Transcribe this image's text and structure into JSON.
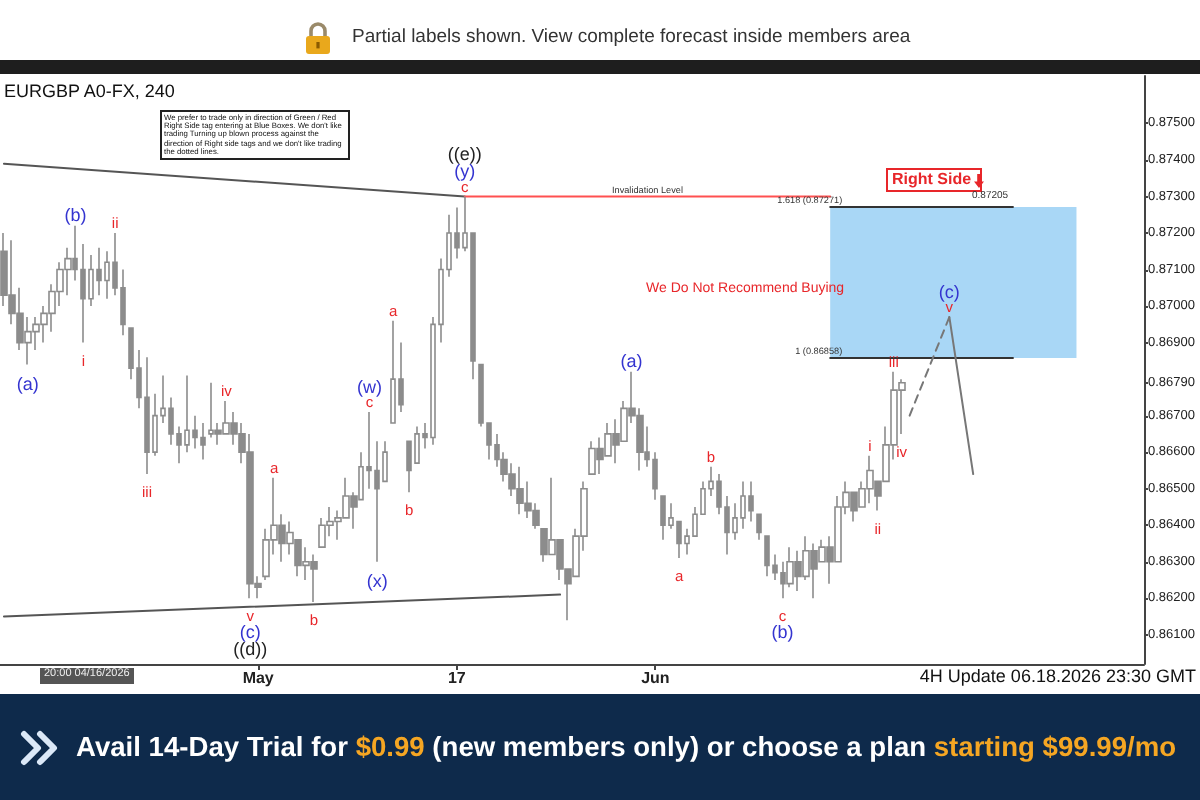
{
  "chart_data": {
    "type": "candlestick",
    "title": "EURGBP A0-FX, 240",
    "color": "#8c8c8c",
    "categories": [
      null,
      null,
      null,
      null,
      null,
      null,
      null,
      null,
      null,
      null,
      null,
      null,
      null,
      null,
      null,
      null,
      null,
      null,
      null,
      null,
      null,
      null,
      null,
      null,
      null,
      null,
      null,
      null,
      null,
      null,
      null,
      null,
      "May",
      null,
      null,
      null,
      null,
      null,
      null,
      null,
      null,
      null,
      null,
      null,
      null,
      null,
      null,
      null,
      null,
      null,
      null,
      null,
      null,
      null,
      null,
      null,
      null,
      "17",
      null,
      null,
      null,
      null,
      null,
      null,
      null,
      null,
      null,
      null,
      null,
      null,
      null,
      null,
      null,
      null,
      null,
      null,
      null,
      null,
      null,
      null,
      null,
      null,
      "Jun",
      null,
      null,
      null,
      null,
      null,
      null,
      null,
      null,
      null,
      null,
      null,
      null,
      null,
      null,
      null,
      null,
      null,
      null,
      null,
      null,
      null,
      null,
      null,
      null,
      null,
      null,
      null,
      null,
      null,
      null,
      null,
      null,
      null,
      null,
      null,
      null,
      null,
      null,
      null,
      null,
      null,
      null,
      null,
      null,
      null,
      null,
      null,
      null,
      null,
      null,
      null,
      null,
      null,
      null,
      null,
      null,
      null,
      null,
      null,
      null,
      null
    ],
    "ohlc": [
      [
        0.8715,
        0.872,
        0.87,
        0.8703
      ],
      [
        0.8703,
        0.8718,
        0.8695,
        0.8698
      ],
      [
        0.8698,
        0.8705,
        0.8688,
        0.869
      ],
      [
        0.869,
        0.8697,
        0.8684,
        0.8693
      ],
      [
        0.8693,
        0.8697,
        0.8688,
        0.8695
      ],
      [
        0.8695,
        0.87,
        0.869,
        0.8698
      ],
      [
        0.8698,
        0.8706,
        0.8693,
        0.8704
      ],
      [
        0.8704,
        0.8712,
        0.87,
        0.871
      ],
      [
        0.871,
        0.8716,
        0.8703,
        0.8713
      ],
      [
        0.8713,
        0.8722,
        0.8707,
        0.871
      ],
      [
        0.871,
        0.8717,
        0.869,
        0.8702
      ],
      [
        0.8702,
        0.8714,
        0.87,
        0.871
      ],
      [
        0.871,
        0.8716,
        0.8703,
        0.8707
      ],
      [
        0.8707,
        0.8715,
        0.8702,
        0.8712
      ],
      [
        0.8712,
        0.872,
        0.8703,
        0.8705
      ],
      [
        0.8705,
        0.871,
        0.8692,
        0.8695
      ],
      [
        0.8694,
        0.8694,
        0.868,
        0.8683
      ],
      [
        0.8683,
        0.8688,
        0.8672,
        0.8675
      ],
      [
        0.8675,
        0.8686,
        0.8654,
        0.866
      ],
      [
        0.866,
        0.8676,
        0.8659,
        0.867
      ],
      [
        0.867,
        0.8681,
        0.8668,
        0.8672
      ],
      [
        0.8672,
        0.8675,
        0.8662,
        0.8665
      ],
      [
        0.8665,
        0.8667,
        0.8657,
        0.8662
      ],
      [
        0.8662,
        0.8681,
        0.866,
        0.8666
      ],
      [
        0.8666,
        0.867,
        0.8661,
        0.8664
      ],
      [
        0.8664,
        0.8668,
        0.8658,
        0.8662
      ],
      [
        0.8665,
        0.8679,
        0.8664,
        0.8666
      ],
      [
        0.8666,
        0.8668,
        0.8662,
        0.8665
      ],
      [
        0.8665,
        0.8674,
        0.8665,
        0.8668
      ],
      [
        0.8668,
        0.8671,
        0.8662,
        0.8665
      ],
      [
        0.8665,
        0.8668,
        0.8657,
        0.866
      ],
      [
        0.866,
        0.8665,
        0.862,
        0.8624
      ],
      [
        0.8624,
        0.8626,
        0.862,
        0.8623
      ],
      [
        0.8626,
        0.8639,
        0.8625,
        0.8636
      ],
      [
        0.8636,
        0.8653,
        0.8632,
        0.864
      ],
      [
        0.864,
        0.8643,
        0.863,
        0.8635
      ],
      [
        0.8635,
        0.8641,
        0.8632,
        0.8638
      ],
      [
        0.8636,
        0.8636,
        0.8626,
        0.8629
      ],
      [
        0.8629,
        0.8634,
        0.8625,
        0.863
      ],
      [
        0.863,
        0.8632,
        0.8619,
        0.8628
      ],
      [
        0.8634,
        0.8642,
        0.8634,
        0.864
      ],
      [
        0.864,
        0.8645,
        0.8637,
        0.8641
      ],
      [
        0.8641,
        0.8644,
        0.8636,
        0.8642
      ],
      [
        0.8642,
        0.8653,
        0.8642,
        0.8648
      ],
      [
        0.8648,
        0.8649,
        0.8639,
        0.8645
      ],
      [
        0.8647,
        0.866,
        0.8647,
        0.8656
      ],
      [
        0.8656,
        0.8671,
        0.865,
        0.8655
      ],
      [
        0.8655,
        0.8663,
        0.863,
        0.865
      ],
      [
        0.8652,
        0.8663,
        0.8652,
        0.866
      ],
      [
        0.8668,
        0.8696,
        0.8668,
        0.868
      ],
      [
        0.868,
        0.869,
        0.8671,
        0.8673
      ],
      [
        0.8663,
        0.8663,
        0.8649,
        0.8655
      ],
      [
        0.8657,
        0.8667,
        0.8657,
        0.8665
      ],
      [
        0.8665,
        0.8668,
        0.8661,
        0.8664
      ],
      [
        0.8664,
        0.8697,
        0.8662,
        0.8695
      ],
      [
        0.8695,
        0.8713,
        0.869,
        0.871
      ],
      [
        0.871,
        0.8725,
        0.8708,
        0.872
      ],
      [
        0.872,
        0.8727,
        0.8713,
        0.8716
      ],
      [
        0.8716,
        0.873,
        0.8715,
        0.872
      ],
      [
        0.872,
        0.872,
        0.868,
        0.8685
      ],
      [
        0.8684,
        0.8684,
        0.8667,
        0.8668
      ],
      [
        0.8668,
        0.8668,
        0.8658,
        0.8662
      ],
      [
        0.8662,
        0.8665,
        0.8656,
        0.8658
      ],
      [
        0.8658,
        0.866,
        0.8652,
        0.8654
      ],
      [
        0.8654,
        0.8657,
        0.8648,
        0.865
      ],
      [
        0.865,
        0.8656,
        0.8643,
        0.8646
      ],
      [
        0.8646,
        0.8652,
        0.8642,
        0.8644
      ],
      [
        0.8644,
        0.8646,
        0.8639,
        0.864
      ],
      [
        0.8639,
        0.8639,
        0.863,
        0.8632
      ],
      [
        0.8632,
        0.8653,
        0.8632,
        0.8636
      ],
      [
        0.8636,
        0.8636,
        0.8625,
        0.8628
      ],
      [
        0.8628,
        0.8628,
        0.8614,
        0.8624
      ],
      [
        0.8626,
        0.8639,
        0.8626,
        0.8637
      ],
      [
        0.8637,
        0.8652,
        0.8633,
        0.865
      ],
      [
        0.8654,
        0.8663,
        0.8654,
        0.8661
      ],
      [
        0.8661,
        0.8664,
        0.8654,
        0.8658
      ],
      [
        0.8659,
        0.8668,
        0.8659,
        0.8665
      ],
      [
        0.8665,
        0.8669,
        0.8657,
        0.8662
      ],
      [
        0.8663,
        0.8674,
        0.8663,
        0.8672
      ],
      [
        0.8672,
        0.8682,
        0.8668,
        0.867
      ],
      [
        0.867,
        0.8672,
        0.8655,
        0.866
      ],
      [
        0.866,
        0.8667,
        0.8656,
        0.8658
      ],
      [
        0.8658,
        0.866,
        0.8647,
        0.865
      ],
      [
        0.8648,
        0.8648,
        0.8636,
        0.864
      ],
      [
        0.864,
        0.8646,
        0.8639,
        0.8642
      ],
      [
        0.8641,
        0.8641,
        0.8631,
        0.8635
      ],
      [
        0.8635,
        0.8639,
        0.8632,
        0.8637
      ],
      [
        0.8637,
        0.8645,
        0.8637,
        0.8643
      ],
      [
        0.8643,
        0.8652,
        0.8643,
        0.865
      ],
      [
        0.865,
        0.8656,
        0.8648,
        0.8652
      ],
      [
        0.8652,
        0.8654,
        0.8643,
        0.8645
      ],
      [
        0.8645,
        0.8648,
        0.8632,
        0.8638
      ],
      [
        0.8638,
        0.8646,
        0.8636,
        0.8642
      ],
      [
        0.8642,
        0.8652,
        0.8639,
        0.8648
      ],
      [
        0.8648,
        0.8652,
        0.8641,
        0.8644
      ],
      [
        0.8643,
        0.8643,
        0.8636,
        0.8638
      ],
      [
        0.8637,
        0.8637,
        0.8626,
        0.8629
      ],
      [
        0.8629,
        0.8632,
        0.8625,
        0.8627
      ],
      [
        0.8627,
        0.863,
        0.862,
        0.8624
      ],
      [
        0.8624,
        0.8634,
        0.8623,
        0.863
      ],
      [
        0.863,
        0.8633,
        0.8622,
        0.8626
      ],
      [
        0.8626,
        0.8637,
        0.8625,
        0.8633
      ],
      [
        0.8633,
        0.8635,
        0.862,
        0.8628
      ],
      [
        0.863,
        0.8636,
        0.863,
        0.8634
      ],
      [
        0.8634,
        0.8637,
        0.8624,
        0.863
      ],
      [
        0.863,
        0.8648,
        0.863,
        0.8645
      ],
      [
        0.8645,
        0.8652,
        0.8643,
        0.8649
      ],
      [
        0.8649,
        0.8649,
        0.8641,
        0.8644
      ],
      [
        0.8645,
        0.8652,
        0.8645,
        0.865
      ],
      [
        0.865,
        0.8659,
        0.8646,
        0.8655
      ],
      [
        0.8652,
        0.8652,
        0.8644,
        0.8648
      ],
      [
        0.8652,
        0.8667,
        0.8652,
        0.8662
      ],
      [
        0.8662,
        0.8682,
        0.8658,
        0.8677
      ],
      [
        0.8677,
        0.868,
        0.8665,
        0.8679
      ],
      null,
      null,
      null,
      null,
      null,
      null,
      null,
      null,
      null,
      null,
      null,
      null,
      null,
      null,
      null,
      null,
      null,
      null,
      null,
      null,
      null,
      null,
      null,
      null,
      null,
      null,
      null,
      null,
      null,
      null
    ],
    "series": [
      {
        "type": "line",
        "color": "#555555",
        "values": [
          0.8739,
          null,
          null,
          null,
          null,
          null,
          null,
          null,
          null,
          null,
          null,
          null,
          null,
          null,
          null,
          null,
          null,
          null,
          null,
          null,
          null,
          null,
          null,
          null,
          null,
          null,
          null,
          null,
          null,
          null,
          null,
          null,
          null,
          null,
          null,
          null,
          null,
          null,
          null,
          null,
          null,
          null,
          null,
          null,
          null,
          null,
          null,
          null,
          null,
          null,
          null,
          null,
          null,
          null,
          null,
          null,
          null,
          null,
          0.873,
          null,
          null,
          null,
          null,
          null,
          null,
          null,
          null,
          null,
          null,
          null,
          null,
          null,
          null,
          null,
          null,
          null,
          null,
          null,
          null,
          null,
          null,
          null,
          null,
          null,
          null,
          null,
          null,
          null,
          null,
          null,
          null,
          null,
          null,
          null,
          null,
          null,
          null,
          null,
          null,
          null,
          null,
          null,
          null,
          null,
          null,
          null,
          null,
          null,
          null,
          null,
          null,
          null,
          null,
          null,
          null,
          null,
          null,
          null,
          null,
          null,
          null,
          null,
          null,
          null,
          null,
          null,
          null,
          null,
          null,
          null,
          null,
          null,
          null,
          null,
          null,
          null,
          null,
          null,
          null,
          null,
          null,
          null,
          null,
          null
        ]
      },
      {
        "type": "line",
        "color": "#555555",
        "values": [
          0.8615,
          null,
          null,
          null,
          null,
          null,
          null,
          null,
          null,
          null,
          null,
          null,
          null,
          null,
          null,
          null,
          null,
          null,
          null,
          null,
          null,
          null,
          null,
          null,
          null,
          null,
          null,
          null,
          null,
          null,
          null,
          null,
          null,
          null,
          null,
          null,
          null,
          null,
          null,
          null,
          null,
          null,
          null,
          null,
          null,
          null,
          null,
          null,
          null,
          null,
          null,
          null,
          null,
          null,
          null,
          null,
          null,
          null,
          null,
          null,
          null,
          null,
          null,
          null,
          null,
          null,
          null,
          null,
          null,
          null,
          0.8621,
          null,
          null,
          null,
          null,
          null,
          null,
          null,
          null,
          null,
          null,
          null,
          null,
          null,
          null,
          null,
          null,
          null,
          null,
          null,
          null,
          null,
          null,
          null,
          null,
          null,
          null,
          null,
          null,
          null,
          null,
          null,
          null,
          null,
          null,
          null,
          null,
          null,
          null,
          null,
          null,
          null,
          null,
          null,
          null,
          null,
          null,
          null,
          null,
          null,
          null,
          null,
          null,
          null,
          null,
          null,
          null,
          null,
          null,
          null,
          null,
          null,
          null,
          null,
          null,
          null,
          null,
          null,
          null,
          null,
          null,
          null,
          null,
          null
        ]
      },
      {
        "type": "line",
        "name": "Invalidation Level",
        "color": "#ff5050",
        "values": [
          null,
          null,
          null,
          null,
          null,
          null,
          null,
          null,
          null,
          null,
          null,
          null,
          null,
          null,
          null,
          null,
          null,
          null,
          null,
          null,
          null,
          null,
          null,
          null,
          null,
          null,
          null,
          null,
          null,
          null,
          null,
          null,
          null,
          null,
          null,
          null,
          null,
          null,
          null,
          null,
          null,
          null,
          null,
          null,
          null,
          null,
          null,
          null,
          null,
          null,
          null,
          null,
          null,
          null,
          null,
          null,
          null,
          null,
          0.873,
          null,
          null,
          null,
          null,
          null,
          null,
          null,
          null,
          null,
          null,
          null,
          null,
          null,
          null,
          null,
          null,
          null,
          null,
          null,
          null,
          null,
          null,
          null,
          null,
          null,
          null,
          null,
          null,
          null,
          null,
          null,
          null,
          null,
          null,
          null,
          null,
          null,
          null,
          null,
          null,
          null,
          null,
          null,
          null,
          null,
          0.873,
          null,
          null,
          null,
          null,
          null,
          null,
          null,
          null,
          null,
          null,
          null,
          null,
          null,
          null,
          null,
          null,
          null,
          null,
          null,
          null,
          null,
          null,
          null,
          null,
          null,
          null,
          null,
          null,
          null,
          null,
          null,
          null,
          null,
          null,
          null,
          null,
          null,
          null,
          null
        ]
      },
      {
        "type": "line",
        "name": "1.618 (0.87271)",
        "color": "#333333",
        "values": [
          null,
          null,
          null,
          null,
          null,
          null,
          null,
          null,
          null,
          null,
          null,
          null,
          null,
          null,
          null,
          null,
          null,
          null,
          null,
          null,
          null,
          null,
          null,
          null,
          null,
          null,
          null,
          null,
          null,
          null,
          null,
          null,
          null,
          null,
          null,
          null,
          null,
          null,
          null,
          null,
          null,
          null,
          null,
          null,
          null,
          null,
          null,
          null,
          null,
          null,
          null,
          null,
          null,
          null,
          null,
          null,
          null,
          null,
          null,
          null,
          null,
          null,
          null,
          null,
          null,
          null,
          null,
          null,
          null,
          null,
          null,
          null,
          null,
          null,
          null,
          null,
          null,
          null,
          null,
          null,
          null,
          null,
          null,
          null,
          null,
          null,
          null,
          null,
          null,
          null,
          null,
          null,
          null,
          null,
          null,
          null,
          null,
          null,
          null,
          null,
          null,
          null,
          null,
          null,
          0.87271,
          null,
          null,
          null,
          null,
          null,
          null,
          null,
          null,
          null,
          null,
          null,
          null,
          null,
          null,
          null,
          null,
          null,
          null,
          null,
          null,
          null,
          null,
          0.87271,
          null,
          null,
          null,
          null,
          null,
          null,
          null,
          null,
          null,
          null,
          null,
          null,
          null,
          null,
          null,
          null
        ]
      },
      {
        "type": "line",
        "name": "1 (0.86858)",
        "color": "#333333",
        "values": [
          null,
          null,
          null,
          null,
          null,
          null,
          null,
          null,
          null,
          null,
          null,
          null,
          null,
          null,
          null,
          null,
          null,
          null,
          null,
          null,
          null,
          null,
          null,
          null,
          null,
          null,
          null,
          null,
          null,
          null,
          null,
          null,
          null,
          null,
          null,
          null,
          null,
          null,
          null,
          null,
          null,
          null,
          null,
          null,
          null,
          null,
          null,
          null,
          null,
          null,
          null,
          null,
          null,
          null,
          null,
          null,
          null,
          null,
          null,
          null,
          null,
          null,
          null,
          null,
          null,
          null,
          null,
          null,
          null,
          null,
          null,
          null,
          null,
          null,
          null,
          null,
          null,
          null,
          null,
          null,
          null,
          null,
          null,
          null,
          null,
          null,
          null,
          null,
          null,
          null,
          null,
          null,
          null,
          null,
          null,
          null,
          null,
          null,
          null,
          null,
          null,
          null,
          null,
          null,
          0.86858,
          null,
          null,
          null,
          null,
          null,
          null,
          null,
          null,
          null,
          null,
          null,
          null,
          null,
          null,
          null,
          null,
          null,
          null,
          null,
          null,
          null,
          null,
          0.86858,
          null,
          null,
          null,
          null,
          null,
          null,
          null,
          null,
          null,
          null,
          null,
          null,
          null,
          null,
          null,
          null
        ]
      },
      {
        "type": "line",
        "color": "#777777",
        "line_style": "dashed",
        "values": [
          null,
          null,
          null,
          null,
          null,
          null,
          null,
          null,
          null,
          null,
          null,
          null,
          null,
          null,
          null,
          null,
          null,
          null,
          null,
          null,
          null,
          null,
          null,
          null,
          null,
          null,
          null,
          null,
          null,
          null,
          null,
          null,
          null,
          null,
          null,
          null,
          null,
          null,
          null,
          null,
          null,
          null,
          null,
          null,
          null,
          null,
          null,
          null,
          null,
          null,
          null,
          null,
          null,
          null,
          null,
          null,
          null,
          null,
          null,
          null,
          null,
          null,
          null,
          null,
          null,
          null,
          null,
          null,
          null,
          null,
          null,
          null,
          null,
          null,
          null,
          null,
          null,
          null,
          null,
          null,
          null,
          null,
          null,
          null,
          null,
          null,
          null,
          null,
          null,
          null,
          null,
          null,
          null,
          null,
          null,
          null,
          null,
          null,
          null,
          null,
          null,
          null,
          null,
          null,
          null,
          null,
          null,
          null,
          null,
          null,
          null,
          null,
          null,
          null,
          0.867,
          null,
          null,
          null,
          null,
          0.8697,
          null,
          null,
          null,
          null,
          null,
          null,
          null,
          null,
          null,
          null,
          null,
          null,
          null,
          null,
          null,
          null,
          null,
          null,
          null,
          null,
          null,
          null,
          null,
          null
        ]
      },
      {
        "type": "line",
        "color": "#777777",
        "values": [
          null,
          null,
          null,
          null,
          null,
          null,
          null,
          null,
          null,
          null,
          null,
          null,
          null,
          null,
          null,
          null,
          null,
          null,
          null,
          null,
          null,
          null,
          null,
          null,
          null,
          null,
          null,
          null,
          null,
          null,
          null,
          null,
          null,
          null,
          null,
          null,
          null,
          null,
          null,
          null,
          null,
          null,
          null,
          null,
          null,
          null,
          null,
          null,
          null,
          null,
          null,
          null,
          null,
          null,
          null,
          null,
          null,
          null,
          null,
          null,
          null,
          null,
          null,
          null,
          null,
          null,
          null,
          null,
          null,
          null,
          null,
          null,
          null,
          null,
          null,
          null,
          null,
          null,
          null,
          null,
          null,
          null,
          null,
          null,
          null,
          null,
          null,
          null,
          null,
          null,
          null,
          null,
          null,
          null,
          null,
          null,
          null,
          null,
          null,
          null,
          null,
          null,
          null,
          null,
          null,
          null,
          null,
          null,
          null,
          null,
          null,
          null,
          null,
          null,
          null,
          null,
          null,
          null,
          null,
          0.8697,
          null,
          null,
          0.8654,
          null,
          null,
          null,
          null,
          null,
          null,
          null,
          null,
          null,
          null,
          null,
          null,
          null,
          null,
          null,
          null,
          null,
          null,
          null,
          null,
          null
        ]
      }
    ],
    "bands": [
      {
        "axis": "y",
        "from": 0.86858,
        "to": 0.87271,
        "color": "#a9d7f6"
      }
    ],
    "ylim": [
      0.8602,
      0.8763
    ],
    "yticks": [
      {
        "value": 0.861,
        "label": "0.86100"
      },
      {
        "value": 0.862,
        "label": "0.86200"
      },
      {
        "value": 0.863,
        "label": "0.86300"
      },
      {
        "value": 0.864,
        "label": "0.86400"
      },
      {
        "value": 0.865,
        "label": "0.86500"
      },
      {
        "value": 0.866,
        "label": "0.86600"
      },
      {
        "value": 0.867,
        "label": "0.86700"
      },
      {
        "value": 0.8679,
        "label": "0.86790"
      },
      {
        "value": 0.869,
        "label": "0.86900"
      },
      {
        "value": 0.87,
        "label": "0.87000"
      },
      {
        "value": 0.871,
        "label": "0.87100"
      },
      {
        "value": 0.872,
        "label": "0.87200"
      },
      {
        "value": 0.873,
        "label": "0.87300"
      },
      {
        "value": 0.874,
        "label": "0.87400"
      },
      {
        "value": 0.875,
        "label": "0.87500"
      }
    ],
    "annotations": [
      {
        "text": "(a)",
        "y": 0.8684
      },
      {
        "text": "(b)",
        "y": 0.8722
      },
      {
        "text": "i",
        "y": 0.869
      },
      {
        "text": "ii",
        "y": 0.872
      },
      {
        "text": "iii",
        "y": 0.8654
      },
      {
        "text": "iv",
        "y": 0.8674
      },
      {
        "text": "v",
        "y": 0.862
      },
      {
        "text": "(c)",
        "y": 0.862
      },
      {
        "text": "((d))",
        "y": 0.862
      },
      {
        "text": "a",
        "y": 0.8653
      },
      {
        "text": "b",
        "y": 0.8619
      },
      {
        "text": "c",
        "y": 0.8671
      },
      {
        "text": "(w)",
        "y": 0.8671
      },
      {
        "text": "(x)",
        "y": 0.863
      },
      {
        "text": "a",
        "y": 0.8696
      },
      {
        "text": "b",
        "y": 0.8649
      },
      {
        "text": "c",
        "y": 0.873
      },
      {
        "text": "(y)",
        "y": 0.873
      },
      {
        "text": "((e))",
        "y": 0.873
      },
      {
        "text": "(a)",
        "y": 0.8682
      },
      {
        "text": "a",
        "y": 0.8631
      },
      {
        "text": "b",
        "y": 0.8656
      },
      {
        "text": "c",
        "y": 0.862
      },
      {
        "text": "(b)",
        "y": 0.862
      },
      {
        "text": "i",
        "y": 0.8659
      },
      {
        "text": "ii",
        "y": 0.8644
      },
      {
        "text": "iii",
        "y": 0.8682
      },
      {
        "text": "iv",
        "y": 0.8665
      },
      {
        "text": "v",
        "y": 0.8697
      },
      {
        "text": "(c)",
        "y": 0.8697
      },
      "Partial labels shown. View complete forecast inside members area",
      "We prefer to trade only in direction of Green / Red Right Side tag entering at Blue Boxes. We don't like trading Turning up blown process against the direction of Right side tags and we don't like trading the dotted lines.",
      "We Do Not Recommend Buying",
      "Right Side",
      "0.87205",
      "4H Update 06.18.2026 23:30 GMT",
      "20:00 04/16/2026",
      "Avail 14-Day Trial for",
      "$0.99",
      "(new members only) or choose a plan",
      "starting $99.99/mo"
    ]
  }
}
